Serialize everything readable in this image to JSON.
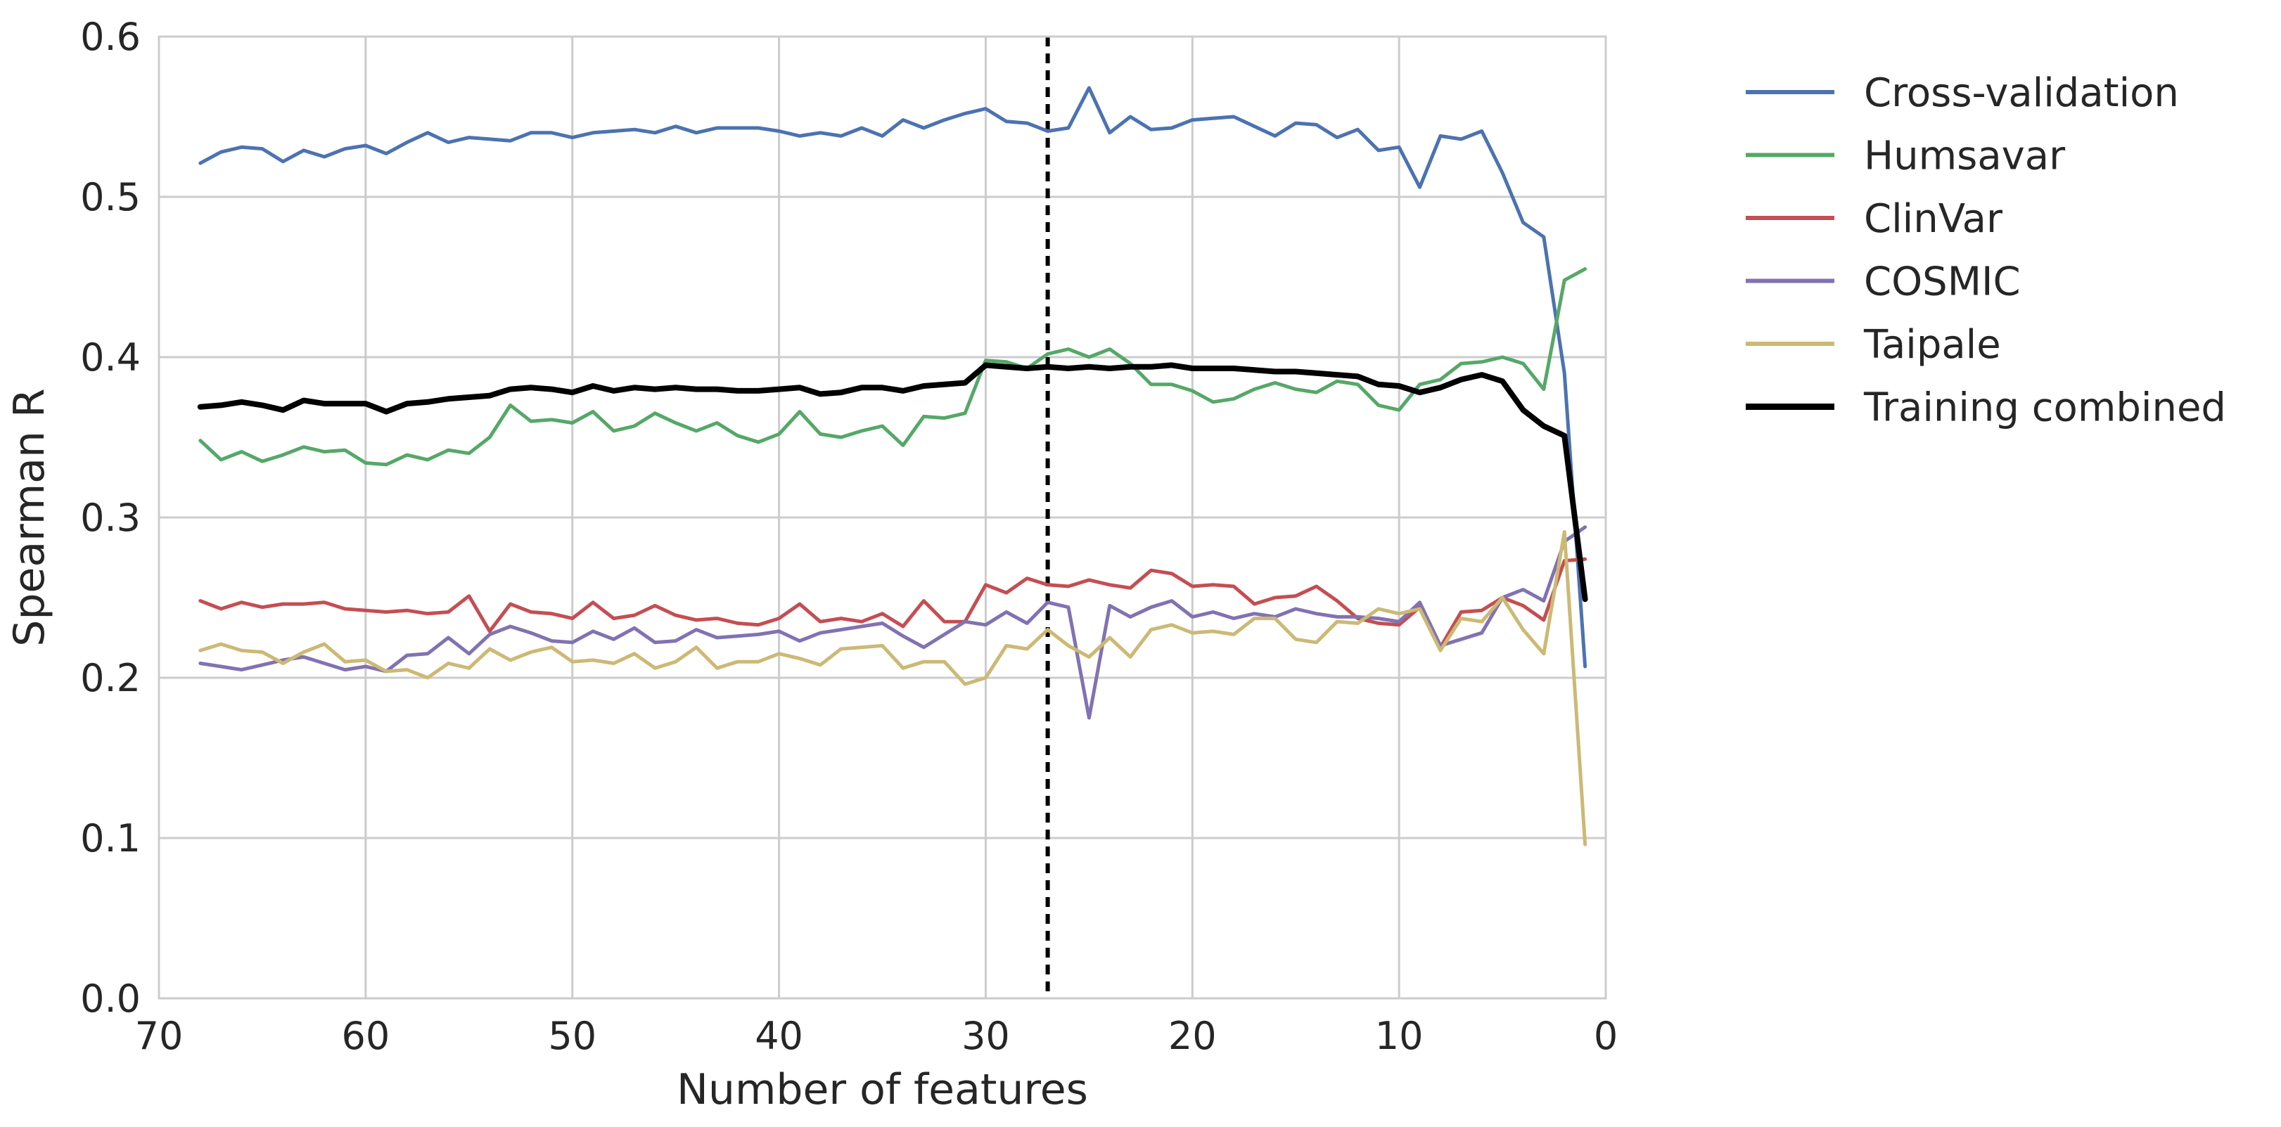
{
  "chart_data": {
    "type": "line",
    "title": "",
    "xlabel": "Number of features",
    "ylabel": "Spearman R",
    "xlim": [
      70,
      0
    ],
    "ylim": [
      0.0,
      0.6
    ],
    "x_inverted": true,
    "grid": true,
    "legend_position": "outside-right",
    "xticks": [
      70,
      60,
      50,
      40,
      30,
      20,
      10,
      0
    ],
    "xtick_labels": [
      "70",
      "60",
      "50",
      "40",
      "30",
      "20",
      "10",
      "0"
    ],
    "yticks": [
      0.0,
      0.1,
      0.2,
      0.3,
      0.4,
      0.5,
      0.6
    ],
    "ytick_labels": [
      "0.0",
      "0.1",
      "0.2",
      "0.3",
      "0.4",
      "0.5",
      "0.6"
    ],
    "vline": {
      "x": 27,
      "style": "dashed",
      "color": "#000000"
    },
    "x": [
      68,
      67,
      66,
      65,
      64,
      63,
      62,
      61,
      60,
      59,
      58,
      57,
      56,
      55,
      54,
      53,
      52,
      51,
      50,
      49,
      48,
      47,
      46,
      45,
      44,
      43,
      42,
      41,
      40,
      39,
      38,
      37,
      36,
      35,
      34,
      33,
      32,
      31,
      30,
      29,
      28,
      27,
      26,
      25,
      24,
      23,
      22,
      21,
      20,
      19,
      18,
      17,
      16,
      15,
      14,
      13,
      12,
      11,
      10,
      9,
      8,
      7,
      6,
      5,
      4,
      3,
      2,
      1
    ],
    "series": [
      {
        "name": "Cross-validation",
        "color": "#4c72b0",
        "values": [
          0.521,
          0.528,
          0.531,
          0.53,
          0.522,
          0.529,
          0.525,
          0.53,
          0.532,
          0.527,
          0.534,
          0.54,
          0.534,
          0.537,
          0.536,
          0.535,
          0.54,
          0.54,
          0.537,
          0.54,
          0.541,
          0.542,
          0.54,
          0.544,
          0.54,
          0.543,
          0.543,
          0.543,
          0.541,
          0.538,
          0.54,
          0.538,
          0.543,
          0.538,
          0.548,
          0.543,
          0.548,
          0.552,
          0.555,
          0.547,
          0.546,
          0.541,
          0.543,
          0.568,
          0.54,
          0.55,
          0.542,
          0.543,
          0.548,
          0.549,
          0.55,
          0.544,
          0.538,
          0.546,
          0.545,
          0.537,
          0.542,
          0.529,
          0.531,
          0.506,
          0.538,
          0.536,
          0.541,
          0.515,
          0.484,
          0.475,
          0.39,
          0.207
        ]
      },
      {
        "name": "Humsavar",
        "color": "#55a868",
        "values": [
          0.348,
          0.336,
          0.341,
          0.335,
          0.339,
          0.344,
          0.341,
          0.342,
          0.334,
          0.333,
          0.339,
          0.336,
          0.342,
          0.34,
          0.35,
          0.37,
          0.36,
          0.361,
          0.359,
          0.366,
          0.354,
          0.357,
          0.365,
          0.359,
          0.354,
          0.359,
          0.351,
          0.347,
          0.352,
          0.366,
          0.352,
          0.35,
          0.354,
          0.357,
          0.345,
          0.363,
          0.362,
          0.365,
          0.398,
          0.397,
          0.393,
          0.402,
          0.405,
          0.4,
          0.405,
          0.396,
          0.383,
          0.383,
          0.379,
          0.372,
          0.374,
          0.38,
          0.384,
          0.38,
          0.378,
          0.385,
          0.383,
          0.37,
          0.367,
          0.383,
          0.386,
          0.396,
          0.397,
          0.4,
          0.396,
          0.38,
          0.448,
          0.455
        ]
      },
      {
        "name": "ClinVar",
        "color": "#c44e52",
        "values": [
          0.248,
          0.243,
          0.247,
          0.244,
          0.246,
          0.246,
          0.247,
          0.243,
          0.242,
          0.241,
          0.242,
          0.24,
          0.241,
          0.251,
          0.229,
          0.246,
          0.241,
          0.24,
          0.237,
          0.247,
          0.237,
          0.239,
          0.245,
          0.239,
          0.236,
          0.237,
          0.234,
          0.233,
          0.237,
          0.246,
          0.235,
          0.237,
          0.235,
          0.24,
          0.232,
          0.248,
          0.235,
          0.235,
          0.258,
          0.253,
          0.262,
          0.258,
          0.257,
          0.261,
          0.258,
          0.256,
          0.267,
          0.265,
          0.257,
          0.258,
          0.257,
          0.246,
          0.25,
          0.251,
          0.257,
          0.248,
          0.237,
          0.234,
          0.233,
          0.244,
          0.219,
          0.241,
          0.242,
          0.25,
          0.245,
          0.236,
          0.273,
          0.274
        ]
      },
      {
        "name": "COSMIC",
        "color": "#8172b2",
        "values": [
          0.209,
          0.207,
          0.205,
          0.208,
          0.211,
          0.213,
          0.209,
          0.205,
          0.207,
          0.204,
          0.214,
          0.215,
          0.225,
          0.215,
          0.227,
          0.232,
          0.228,
          0.223,
          0.222,
          0.229,
          0.224,
          0.231,
          0.222,
          0.223,
          0.23,
          0.225,
          0.226,
          0.227,
          0.229,
          0.223,
          0.228,
          0.23,
          0.232,
          0.234,
          0.226,
          0.219,
          0.227,
          0.235,
          0.233,
          0.241,
          0.234,
          0.247,
          0.244,
          0.175,
          0.245,
          0.238,
          0.244,
          0.248,
          0.238,
          0.241,
          0.237,
          0.24,
          0.238,
          0.243,
          0.24,
          0.238,
          0.238,
          0.237,
          0.235,
          0.247,
          0.22,
          0.224,
          0.228,
          0.25,
          0.255,
          0.248,
          0.285,
          0.294
        ]
      },
      {
        "name": "Taipale",
        "color": "#ccb974",
        "values": [
          0.217,
          0.221,
          0.217,
          0.216,
          0.209,
          0.216,
          0.221,
          0.21,
          0.211,
          0.204,
          0.205,
          0.2,
          0.209,
          0.206,
          0.218,
          0.211,
          0.216,
          0.219,
          0.21,
          0.211,
          0.209,
          0.215,
          0.206,
          0.21,
          0.219,
          0.206,
          0.21,
          0.21,
          0.215,
          0.212,
          0.208,
          0.218,
          0.219,
          0.22,
          0.206,
          0.21,
          0.21,
          0.196,
          0.2,
          0.22,
          0.218,
          0.23,
          0.22,
          0.213,
          0.225,
          0.213,
          0.23,
          0.233,
          0.228,
          0.229,
          0.227,
          0.237,
          0.237,
          0.224,
          0.222,
          0.235,
          0.234,
          0.243,
          0.24,
          0.243,
          0.217,
          0.237,
          0.235,
          0.25,
          0.23,
          0.215,
          0.291,
          0.096
        ]
      },
      {
        "name": "Training combined",
        "color": "#000000",
        "values": [
          0.369,
          0.37,
          0.372,
          0.37,
          0.367,
          0.373,
          0.371,
          0.371,
          0.371,
          0.366,
          0.371,
          0.372,
          0.374,
          0.375,
          0.376,
          0.38,
          0.381,
          0.38,
          0.378,
          0.382,
          0.379,
          0.381,
          0.38,
          0.381,
          0.38,
          0.38,
          0.379,
          0.379,
          0.38,
          0.381,
          0.377,
          0.378,
          0.381,
          0.381,
          0.379,
          0.382,
          0.383,
          0.384,
          0.395,
          0.394,
          0.393,
          0.394,
          0.393,
          0.394,
          0.393,
          0.394,
          0.394,
          0.395,
          0.393,
          0.393,
          0.393,
          0.392,
          0.391,
          0.391,
          0.39,
          0.389,
          0.388,
          0.383,
          0.382,
          0.378,
          0.381,
          0.386,
          0.389,
          0.385,
          0.367,
          0.357,
          0.351,
          0.249
        ]
      }
    ]
  }
}
